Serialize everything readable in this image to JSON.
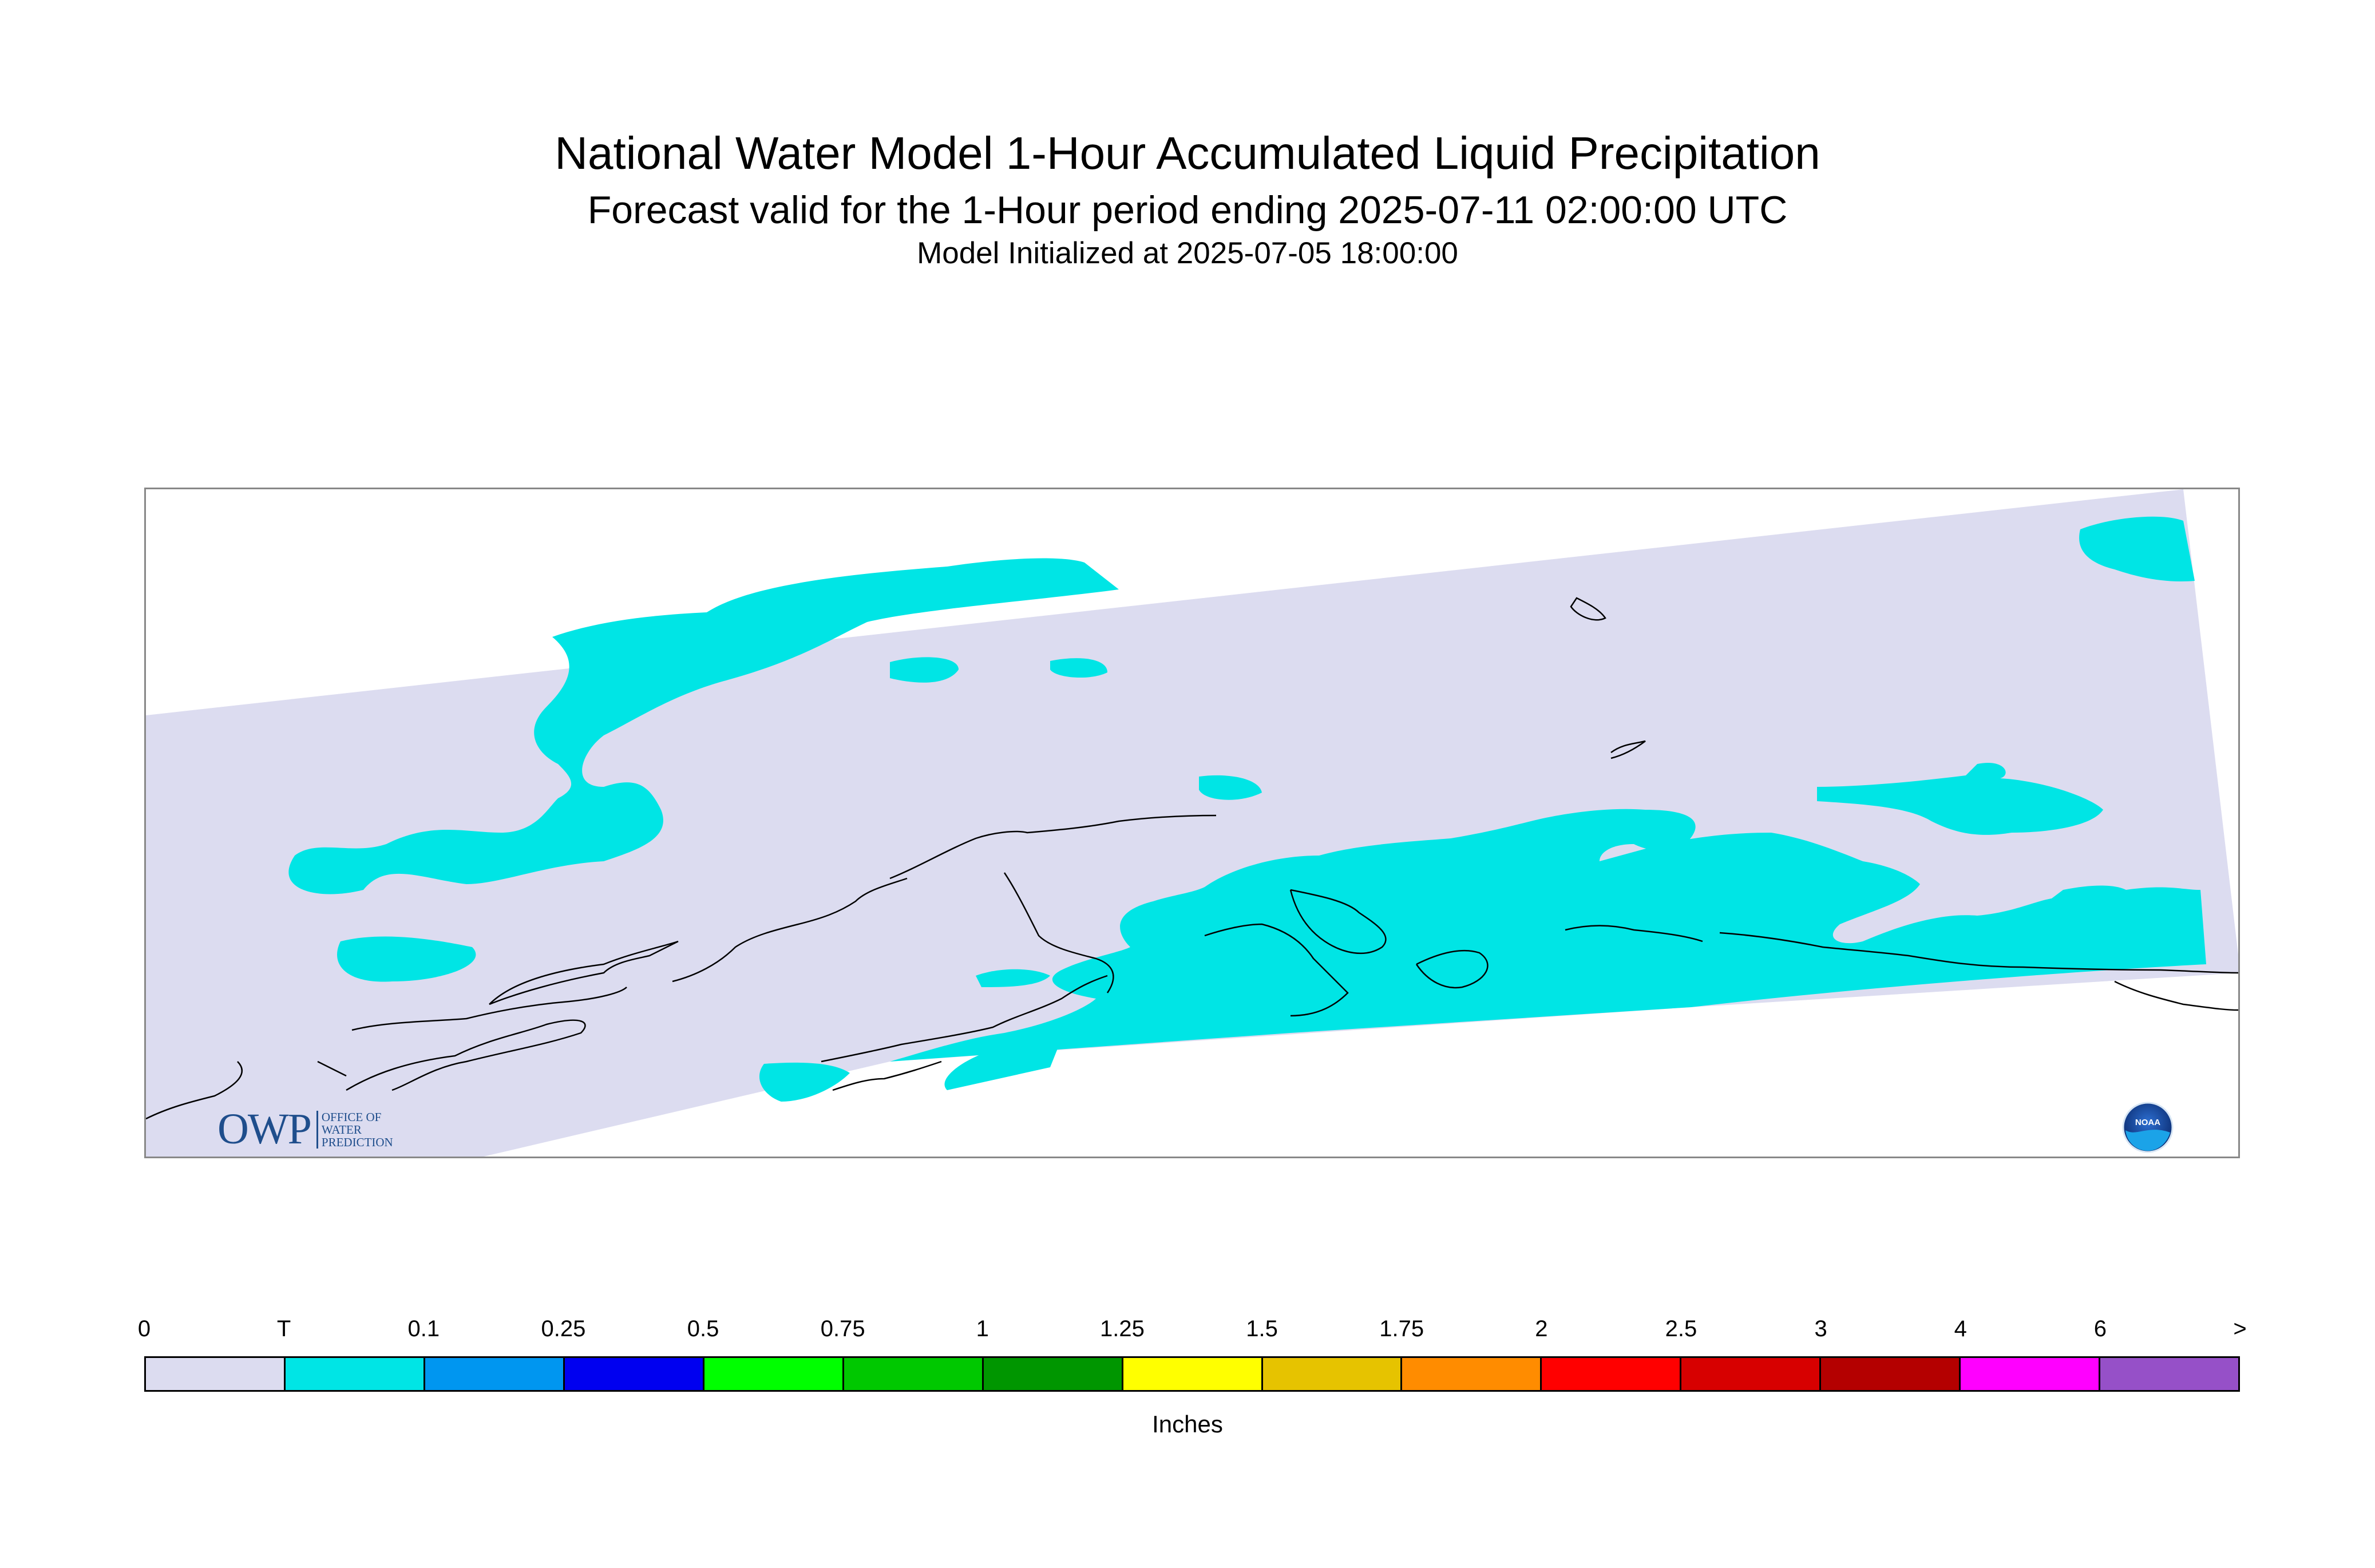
{
  "title": "National Water Model 1-Hour Accumulated Liquid Precipitation",
  "subtitle": "Forecast valid for the 1-Hour period ending 2025-07-11 02:00:00 UTC",
  "init_line": "Model Initialized at 2025-07-05 18:00:00",
  "owp_logo": {
    "mark": "OWP",
    "sub": [
      "OFFICE OF",
      "WATER",
      "PREDICTION"
    ]
  },
  "noaa_logo": {
    "text": "NOAA"
  },
  "legend": {
    "units": "Inches",
    "ticks": [
      "0",
      "T",
      "0.1",
      "0.25",
      "0.5",
      "0.75",
      "1",
      "1.25",
      "1.5",
      "1.75",
      "2",
      "2.5",
      "3",
      "4",
      "6",
      ">"
    ],
    "colors": [
      "#dcdcf0",
      "#00e5e5",
      "#0096f0",
      "#0000f0",
      "#00ff00",
      "#00c800",
      "#009600",
      "#ffff00",
      "#e6c300",
      "#ff8c00",
      "#ff0000",
      "#d70000",
      "#b40000",
      "#ff00ff",
      "#9650c8"
    ]
  },
  "map": {
    "domain_color": "#dcdcf0",
    "trace_color": "#00e5e5",
    "coast_color": "#000000"
  }
}
